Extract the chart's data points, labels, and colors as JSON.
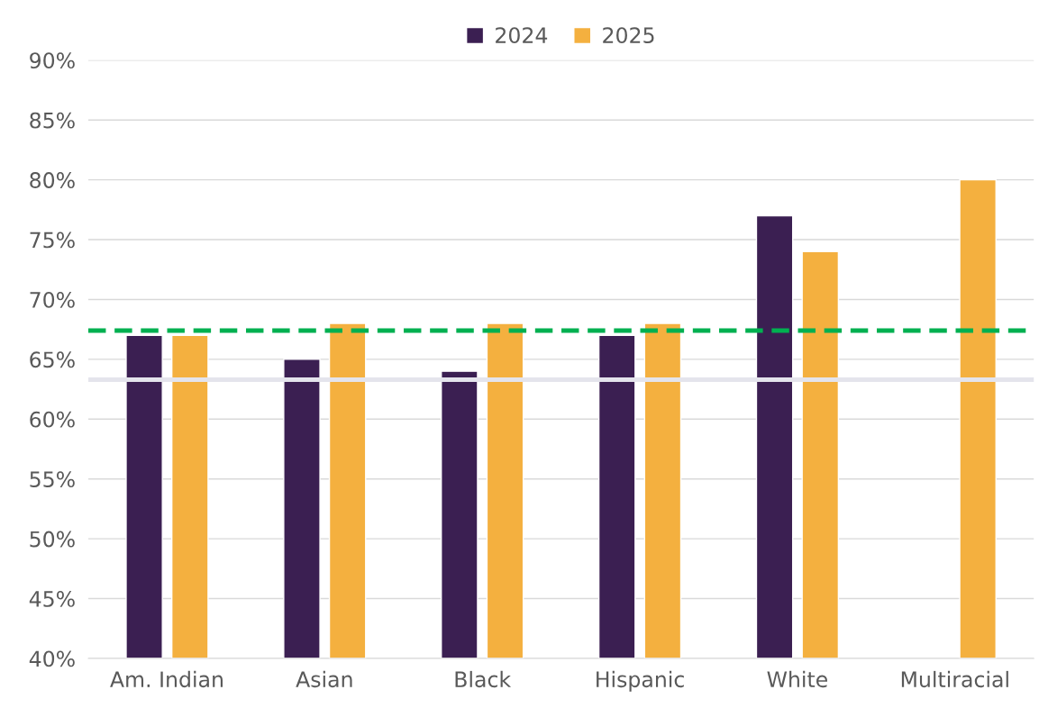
{
  "chart_data": {
    "type": "bar",
    "categories": [
      "Am. Indian",
      "Asian",
      "Black",
      "Hispanic",
      "White",
      "Multiracial"
    ],
    "series": [
      {
        "name": "2024",
        "color": "#3b1f52",
        "values": [
          67,
          65,
          64,
          67,
          77,
          null
        ]
      },
      {
        "name": "2025",
        "color": "#f4b03f",
        "values": [
          67,
          68,
          68,
          68,
          74,
          80
        ]
      }
    ],
    "ylim": [
      40,
      90
    ],
    "yticks": [
      {
        "value": 40,
        "label": "40%"
      },
      {
        "value": 45,
        "label": "45%"
      },
      {
        "value": 50,
        "label": "50%"
      },
      {
        "value": 55,
        "label": "55%"
      },
      {
        "value": 60,
        "label": "60%"
      },
      {
        "value": 65,
        "label": "65%"
      },
      {
        "value": 70,
        "label": "70%"
      },
      {
        "value": 75,
        "label": "75%"
      },
      {
        "value": 80,
        "label": "80%"
      },
      {
        "value": 85,
        "label": "85%"
      },
      {
        "value": 90,
        "label": "90%"
      }
    ],
    "ref_lines": [
      {
        "axis": "y",
        "value": 67.4,
        "color": "#00b050",
        "line_style": "dashed"
      },
      {
        "axis": "y",
        "value": 63.3,
        "color": "#e4e4ec",
        "line_style": "solid"
      }
    ],
    "grid": "y",
    "legend": "top"
  }
}
